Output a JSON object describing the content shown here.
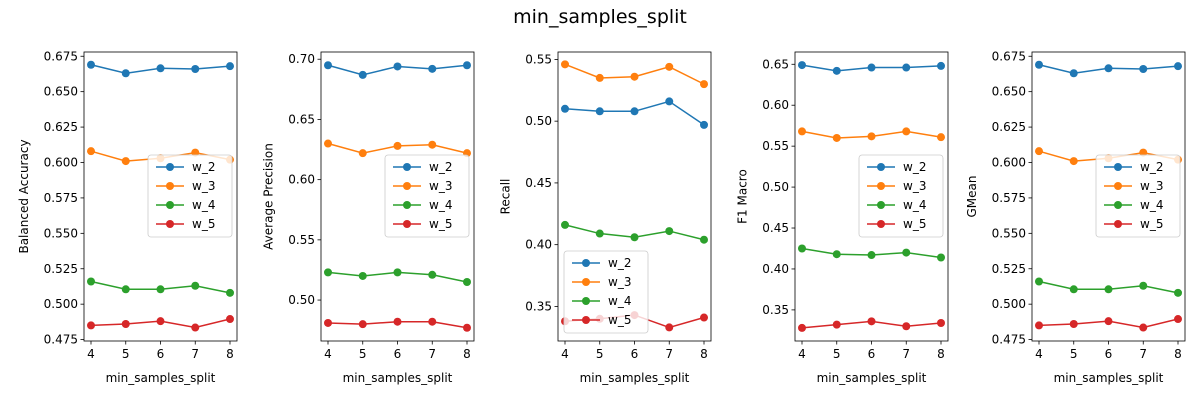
{
  "figure": {
    "title": "min_samples_split"
  },
  "chart_data": [
    {
      "type": "line",
      "xlabel": "min_samples_split",
      "ylabel": "Balanced Accuracy",
      "x": [
        4,
        5,
        6,
        7,
        8
      ],
      "xticks": [
        "4",
        "5",
        "6",
        "7",
        "8"
      ],
      "ylim": [
        0.474,
        0.678
      ],
      "yticks": [
        "0.475",
        "0.500",
        "0.525",
        "0.550",
        "0.575",
        "0.600",
        "0.625",
        "0.650",
        "0.675"
      ],
      "legend_position": "center-right",
      "series": [
        {
          "name": "w_2",
          "color": "#1f77b4",
          "values": [
            0.669,
            0.663,
            0.6665,
            0.666,
            0.668
          ]
        },
        {
          "name": "w_3",
          "color": "#ff7f0e",
          "values": [
            0.608,
            0.601,
            0.603,
            0.607,
            0.602
          ]
        },
        {
          "name": "w_4",
          "color": "#2ca02c",
          "values": [
            0.516,
            0.5105,
            0.5105,
            0.513,
            0.508
          ]
        },
        {
          "name": "w_5",
          "color": "#d62728",
          "values": [
            0.485,
            0.486,
            0.488,
            0.4835,
            0.4895
          ]
        }
      ]
    },
    {
      "type": "line",
      "xlabel": "min_samples_split",
      "ylabel": "Average Precision",
      "x": [
        4,
        5,
        6,
        7,
        8
      ],
      "xticks": [
        "4",
        "5",
        "6",
        "7",
        "8"
      ],
      "ylim": [
        0.466,
        0.706
      ],
      "yticks": [
        "0.50",
        "0.55",
        "0.60",
        "0.65",
        "0.70"
      ],
      "legend_position": "center-right",
      "series": [
        {
          "name": "w_2",
          "color": "#1f77b4",
          "values": [
            0.695,
            0.687,
            0.694,
            0.692,
            0.695
          ]
        },
        {
          "name": "w_3",
          "color": "#ff7f0e",
          "values": [
            0.63,
            0.622,
            0.628,
            0.629,
            0.622
          ]
        },
        {
          "name": "w_4",
          "color": "#2ca02c",
          "values": [
            0.523,
            0.52,
            0.523,
            0.521,
            0.515
          ]
        },
        {
          "name": "w_5",
          "color": "#d62728",
          "values": [
            0.481,
            0.48,
            0.482,
            0.482,
            0.477
          ]
        }
      ]
    },
    {
      "type": "line",
      "xlabel": "min_samples_split",
      "ylabel": "Recall",
      "x": [
        4,
        5,
        6,
        7,
        8
      ],
      "xticks": [
        "4",
        "5",
        "6",
        "7",
        "8"
      ],
      "ylim": [
        0.322,
        0.556
      ],
      "yticks": [
        "0.35",
        "0.40",
        "0.45",
        "0.50",
        "0.55"
      ],
      "legend_position": "lower-left",
      "series": [
        {
          "name": "w_2",
          "color": "#1f77b4",
          "values": [
            0.51,
            0.508,
            0.508,
            0.516,
            0.497
          ]
        },
        {
          "name": "w_3",
          "color": "#ff7f0e",
          "values": [
            0.546,
            0.535,
            0.536,
            0.544,
            0.53
          ]
        },
        {
          "name": "w_4",
          "color": "#2ca02c",
          "values": [
            0.416,
            0.409,
            0.406,
            0.411,
            0.404
          ]
        },
        {
          "name": "w_5",
          "color": "#d62728",
          "values": [
            0.338,
            0.34,
            0.343,
            0.333,
            0.341
          ]
        }
      ]
    },
    {
      "type": "line",
      "xlabel": "min_samples_split",
      "ylabel": "F1 Macro",
      "x": [
        4,
        5,
        6,
        7,
        8
      ],
      "xticks": [
        "4",
        "5",
        "6",
        "7",
        "8"
      ],
      "ylim": [
        0.312,
        0.665
      ],
      "yticks": [
        "0.35",
        "0.40",
        "0.45",
        "0.50",
        "0.55",
        "0.60",
        "0.65"
      ],
      "legend_position": "center-right",
      "series": [
        {
          "name": "w_2",
          "color": "#1f77b4",
          "values": [
            0.649,
            0.642,
            0.646,
            0.646,
            0.648
          ]
        },
        {
          "name": "w_3",
          "color": "#ff7f0e",
          "values": [
            0.568,
            0.56,
            0.562,
            0.568,
            0.561
          ]
        },
        {
          "name": "w_4",
          "color": "#2ca02c",
          "values": [
            0.425,
            0.418,
            0.417,
            0.42,
            0.414
          ]
        },
        {
          "name": "w_5",
          "color": "#d62728",
          "values": [
            0.328,
            0.332,
            0.336,
            0.33,
            0.334
          ]
        }
      ]
    },
    {
      "type": "line",
      "xlabel": "min_samples_split",
      "ylabel": "GMean",
      "x": [
        4,
        5,
        6,
        7,
        8
      ],
      "xticks": [
        "4",
        "5",
        "6",
        "7",
        "8"
      ],
      "ylim": [
        0.474,
        0.678
      ],
      "yticks": [
        "0.475",
        "0.500",
        "0.525",
        "0.550",
        "0.575",
        "0.600",
        "0.625",
        "0.650",
        "0.675"
      ],
      "legend_position": "center-right",
      "series": [
        {
          "name": "w_2",
          "color": "#1f77b4",
          "values": [
            0.669,
            0.663,
            0.6665,
            0.666,
            0.668
          ]
        },
        {
          "name": "w_3",
          "color": "#ff7f0e",
          "values": [
            0.608,
            0.601,
            0.603,
            0.607,
            0.602
          ]
        },
        {
          "name": "w_4",
          "color": "#2ca02c",
          "values": [
            0.516,
            0.5105,
            0.5105,
            0.513,
            0.508
          ]
        },
        {
          "name": "w_5",
          "color": "#d62728",
          "values": [
            0.485,
            0.486,
            0.488,
            0.4835,
            0.4895
          ]
        }
      ]
    }
  ]
}
